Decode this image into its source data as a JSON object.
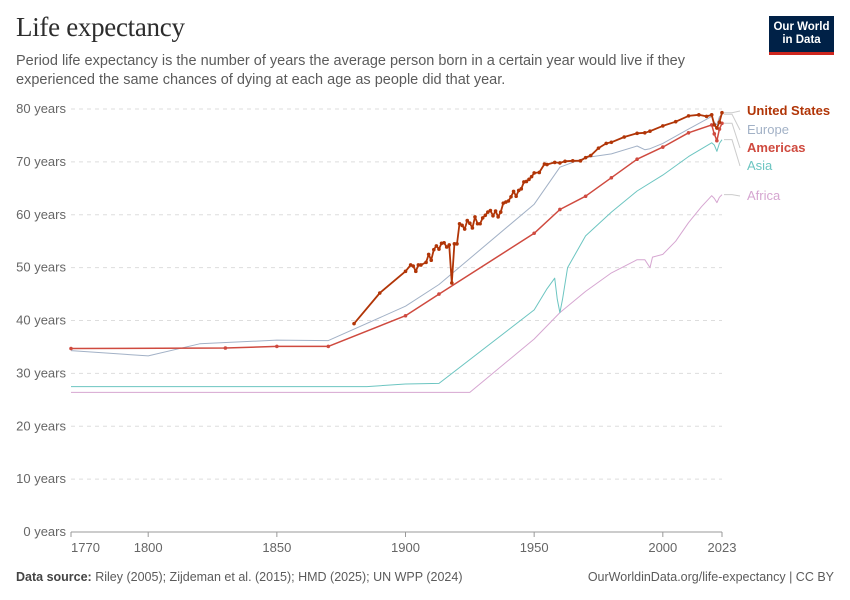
{
  "header": {
    "title": "Life expectancy",
    "subtitle": "Period life expectancy is the number of years the average person born in a certain year would live if they experienced the same chances of dying at each age as people did that year."
  },
  "logo": {
    "line1": "Our World",
    "line2": "in Data",
    "bg_color": "#002147",
    "accent_color": "#ce261e"
  },
  "footer": {
    "source_label": "Data source:",
    "source_text": "Riley (2005); Zijdeman et al. (2015); HMD (2025); UN WPP (2024)",
    "link_text": "OurWorldinData.org/life-expectancy | CC BY"
  },
  "chart_data": {
    "type": "line",
    "title": "Life expectancy",
    "ylim": [
      0,
      80
    ],
    "yticks": [
      0,
      10,
      20,
      30,
      40,
      50,
      60,
      70,
      80
    ],
    "ytick_labels": [
      "0 years",
      "10 years",
      "20 years",
      "30 years",
      "40 years",
      "50 years",
      "60 years",
      "70 years",
      "80 years"
    ],
    "xlim": [
      1770,
      2023
    ],
    "xticks": [
      1770,
      1800,
      1850,
      1900,
      1950,
      2000,
      2023
    ],
    "grid": true,
    "legend": "right-end labels",
    "series": [
      {
        "name": "Africa",
        "color": "#d6a6d1",
        "markers": false,
        "width": 1,
        "points": [
          [
            1770,
            26.4
          ],
          [
            1925,
            26.4
          ],
          [
            1950,
            36.5
          ],
          [
            1960,
            41.5
          ],
          [
            1970,
            45.5
          ],
          [
            1980,
            49
          ],
          [
            1990,
            51.5
          ],
          [
            1993,
            51.5
          ],
          [
            1995,
            50
          ],
          [
            1996,
            52
          ],
          [
            2000,
            52.5
          ],
          [
            2005,
            55
          ],
          [
            2010,
            58.5
          ],
          [
            2015,
            61.5
          ],
          [
            2019,
            63.6
          ],
          [
            2020,
            63.1
          ],
          [
            2021,
            62.3
          ],
          [
            2022,
            63.3
          ],
          [
            2023,
            63.8
          ]
        ]
      },
      {
        "name": "Asia",
        "color": "#6cc5c1",
        "markers": false,
        "width": 1,
        "points": [
          [
            1770,
            27.5
          ],
          [
            1885,
            27.5
          ],
          [
            1900,
            28
          ],
          [
            1913,
            28.1
          ],
          [
            1950,
            42
          ],
          [
            1955,
            46
          ],
          [
            1958,
            48
          ],
          [
            1959,
            44
          ],
          [
            1960,
            41.5
          ],
          [
            1961,
            44
          ],
          [
            1963,
            50
          ],
          [
            1970,
            56
          ],
          [
            1980,
            60.5
          ],
          [
            1990,
            64.5
          ],
          [
            2000,
            67.5
          ],
          [
            2010,
            71
          ],
          [
            2019,
            73.6
          ],
          [
            2020,
            73.2
          ],
          [
            2021,
            72
          ],
          [
            2022,
            73.5
          ],
          [
            2023,
            74.2
          ]
        ]
      },
      {
        "name": "Europe",
        "color": "#a2b1c6",
        "markers": false,
        "width": 1,
        "points": [
          [
            1770,
            34.3
          ],
          [
            1800,
            33.3
          ],
          [
            1820,
            35.6
          ],
          [
            1850,
            36.3
          ],
          [
            1870,
            36.2
          ],
          [
            1900,
            42.7
          ],
          [
            1913,
            46.8
          ],
          [
            1950,
            62
          ],
          [
            1960,
            69
          ],
          [
            1970,
            70.8
          ],
          [
            1980,
            71.5
          ],
          [
            1990,
            73
          ],
          [
            1993,
            72.3
          ],
          [
            1995,
            72.5
          ],
          [
            2000,
            73.5
          ],
          [
            2010,
            76.2
          ],
          [
            2019,
            78.6
          ],
          [
            2020,
            77.5
          ],
          [
            2021,
            77
          ],
          [
            2022,
            78.5
          ],
          [
            2023,
            79
          ]
        ]
      },
      {
        "name": "Americas",
        "color": "#cf4a3f",
        "markers": true,
        "width": 1.5,
        "points": [
          [
            1770,
            34.7
          ],
          [
            1830,
            34.8
          ],
          [
            1850,
            35.1
          ],
          [
            1870,
            35.1
          ],
          [
            1900,
            40.9
          ],
          [
            1913,
            45
          ],
          [
            1950,
            56.5
          ],
          [
            1960,
            61
          ],
          [
            1970,
            63.5
          ],
          [
            1980,
            67
          ],
          [
            1990,
            70.5
          ],
          [
            2000,
            72.8
          ],
          [
            2010,
            75.5
          ],
          [
            2019,
            77
          ],
          [
            2020,
            75.3
          ],
          [
            2021,
            74
          ],
          [
            2022,
            76.2
          ],
          [
            2023,
            77.3
          ]
        ]
      },
      {
        "name": "United States",
        "color": "#b13507",
        "markers": true,
        "width": 1.8,
        "points": [
          [
            1880,
            39.4
          ],
          [
            1890,
            45.2
          ],
          [
            1900,
            49.3
          ],
          [
            1902,
            50.5
          ],
          [
            1903,
            50.3
          ],
          [
            1904,
            49.3
          ],
          [
            1905,
            50.5
          ],
          [
            1906,
            50.5
          ],
          [
            1908,
            51
          ],
          [
            1909,
            52.5
          ],
          [
            1910,
            51.4
          ],
          [
            1911,
            53.4
          ],
          [
            1912,
            54.1
          ],
          [
            1913,
            53.5
          ],
          [
            1914,
            54.6
          ],
          [
            1915,
            54.7
          ],
          [
            1916,
            53.9
          ],
          [
            1917,
            54.3
          ],
          [
            1918,
            47.1
          ],
          [
            1919,
            54.5
          ],
          [
            1920,
            54.5
          ],
          [
            1921,
            58.3
          ],
          [
            1922,
            58
          ],
          [
            1923,
            57.3
          ],
          [
            1924,
            58.9
          ],
          [
            1925,
            58.4
          ],
          [
            1926,
            57.5
          ],
          [
            1927,
            59.6
          ],
          [
            1928,
            58.3
          ],
          [
            1929,
            58.3
          ],
          [
            1930,
            59.4
          ],
          [
            1931,
            59.9
          ],
          [
            1932,
            60.5
          ],
          [
            1933,
            60.8
          ],
          [
            1934,
            59.8
          ],
          [
            1935,
            60.7
          ],
          [
            1936,
            59.6
          ],
          [
            1937,
            60.5
          ],
          [
            1938,
            62.2
          ],
          [
            1939,
            62.4
          ],
          [
            1940,
            62.6
          ],
          [
            1941,
            63.4
          ],
          [
            1942,
            64.4
          ],
          [
            1943,
            63.5
          ],
          [
            1944,
            64.6
          ],
          [
            1945,
            64.9
          ],
          [
            1946,
            66.2
          ],
          [
            1947,
            66.3
          ],
          [
            1948,
            66.7
          ],
          [
            1949,
            67.2
          ],
          [
            1950,
            67.9
          ],
          [
            1952,
            68
          ],
          [
            1954,
            69.6
          ],
          [
            1955,
            69.5
          ],
          [
            1958,
            69.9
          ],
          [
            1960,
            69.8
          ],
          [
            1962,
            70.1
          ],
          [
            1965,
            70.2
          ],
          [
            1968,
            70.2
          ],
          [
            1970,
            70.8
          ],
          [
            1972,
            71.2
          ],
          [
            1975,
            72.6
          ],
          [
            1978,
            73.5
          ],
          [
            1980,
            73.7
          ],
          [
            1985,
            74.7
          ],
          [
            1990,
            75.4
          ],
          [
            1993,
            75.5
          ],
          [
            1995,
            75.8
          ],
          [
            2000,
            76.8
          ],
          [
            2005,
            77.6
          ],
          [
            2010,
            78.7
          ],
          [
            2014,
            78.9
          ],
          [
            2017,
            78.6
          ],
          [
            2019,
            78.9
          ],
          [
            2020,
            77
          ],
          [
            2021,
            76.4
          ],
          [
            2022,
            77.5
          ],
          [
            2023,
            79.3
          ]
        ]
      }
    ]
  }
}
